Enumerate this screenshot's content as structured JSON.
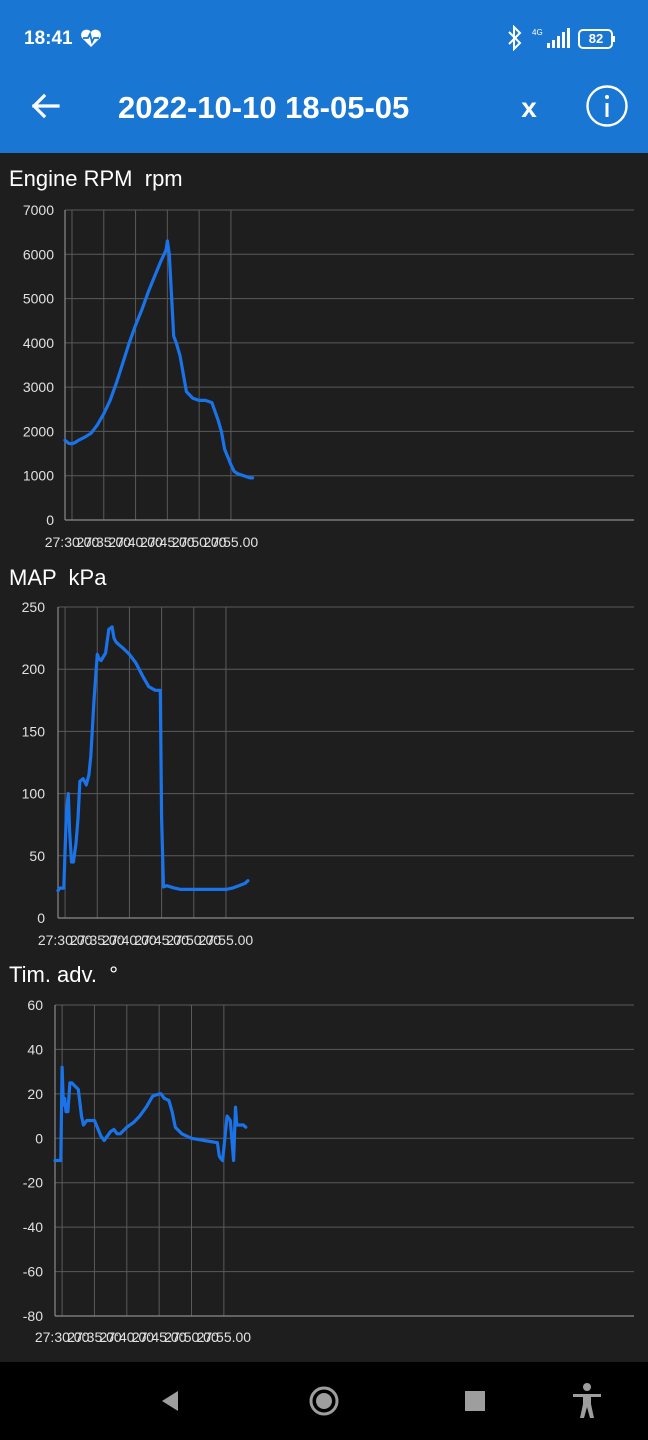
{
  "status_bar": {
    "time": "18:41",
    "network": "4G",
    "battery": "82",
    "icons": [
      "heart-monitor-icon",
      "bluetooth-icon",
      "signal-icon",
      "battery-icon"
    ]
  },
  "app_bar": {
    "title": "2022-10-10 18-05-05",
    "close_label": "x",
    "icons": [
      "back-arrow-icon",
      "info-icon"
    ],
    "color": "#1976d2"
  },
  "line_color": "#1a73e8",
  "chart_data": [
    {
      "type": "line",
      "title": "Engine RPM",
      "unit": "rpm",
      "ylim": [
        0,
        7000
      ],
      "yticks": [
        0,
        1000,
        2000,
        3000,
        4000,
        5000,
        6000,
        7000
      ],
      "ytick_labels": [
        "0",
        "1000",
        "2000",
        "3000",
        "4000",
        "5000",
        "6000",
        "7000"
      ],
      "xlim": [
        1648.9,
        1738.4
      ],
      "xticks": [
        1650,
        1655,
        1660,
        1665,
        1670,
        1675
      ],
      "xtick_labels": [
        "27:30.00",
        "27:35.00",
        "27:40.00",
        "27:45.00",
        "27:50.00",
        "27:55.00"
      ],
      "grid": true,
      "x": [
        1648.9,
        1649.5,
        1650.0,
        1650.5,
        1651.0,
        1652.0,
        1653.0,
        1654.0,
        1655.0,
        1656.0,
        1657.0,
        1658.0,
        1659.0,
        1660.0,
        1661.0,
        1662.0,
        1663.0,
        1664.0,
        1664.8,
        1665.0,
        1665.3,
        1665.6,
        1666.0,
        1666.4,
        1667.0,
        1668.0,
        1669.0,
        1670.0,
        1671.0,
        1672.0,
        1673.0,
        1673.5,
        1674.0,
        1675.0,
        1675.5,
        1676.0,
        1677.0,
        1678.0,
        1678.4
      ],
      "y": [
        1800,
        1730,
        1720,
        1750,
        1800,
        1870,
        1960,
        2150,
        2400,
        2700,
        3100,
        3550,
        4000,
        4400,
        4750,
        5150,
        5500,
        5850,
        6100,
        6300,
        6000,
        5200,
        4150,
        4000,
        3700,
        2900,
        2750,
        2700,
        2700,
        2650,
        2250,
        2000,
        1600,
        1250,
        1100,
        1050,
        1000,
        950,
        950
      ]
    },
    {
      "type": "line",
      "title": "MAP",
      "unit": "kPa",
      "ylim": [
        0,
        250
      ],
      "yticks": [
        0,
        50,
        100,
        150,
        200,
        250
      ],
      "ytick_labels": [
        "0",
        "50",
        "100",
        "150",
        "200",
        "250"
      ],
      "xlim": [
        1648.9,
        1738.4
      ],
      "xticks": [
        1650,
        1655,
        1660,
        1665,
        1670,
        1675
      ],
      "xtick_labels": [
        "27:30.00",
        "27:35.00",
        "27:40.00",
        "27:45.00",
        "27:50.00",
        "27:55.00"
      ],
      "grid": true,
      "x": [
        1648.9,
        1649.2,
        1649.8,
        1650.0,
        1650.2,
        1650.5,
        1650.7,
        1651.0,
        1651.3,
        1651.7,
        1652.0,
        1652.3,
        1652.8,
        1653.3,
        1653.7,
        1654.0,
        1654.5,
        1655.0,
        1655.3,
        1655.6,
        1656.3,
        1656.8,
        1657.3,
        1657.6,
        1657.9,
        1658.3,
        1659.0,
        1660.0,
        1661.0,
        1662.0,
        1663.0,
        1664.0,
        1664.6,
        1664.8,
        1665.0,
        1665.3,
        1665.8,
        1667.0,
        1668.0,
        1670.0,
        1672.0,
        1674.0,
        1675.0,
        1676.0,
        1677.0,
        1678.0,
        1678.4
      ],
      "y": [
        22,
        24,
        24,
        55,
        85,
        100,
        70,
        45,
        45,
        60,
        80,
        110,
        112,
        107,
        115,
        130,
        175,
        212,
        208,
        207,
        213,
        232,
        234,
        225,
        222,
        220,
        217,
        212,
        205,
        195,
        186,
        183,
        183,
        183,
        80,
        25,
        26,
        24,
        23,
        23,
        23,
        23,
        23,
        24,
        26,
        28,
        30
      ]
    },
    {
      "type": "line",
      "title": "Tim. adv.",
      "unit": "°",
      "ylim": [
        -80,
        60
      ],
      "yticks": [
        -80,
        -60,
        -40,
        -20,
        0,
        20,
        40,
        60
      ],
      "ytick_labels": [
        "-80",
        "-60",
        "-40",
        "-20",
        "0",
        "20",
        "40",
        "60"
      ],
      "xlim": [
        1648.9,
        1738.4
      ],
      "xticks": [
        1650,
        1655,
        1660,
        1665,
        1670,
        1675
      ],
      "xtick_labels": [
        "27:30.00",
        "27:35.00",
        "27:40.00",
        "27:45.00",
        "27:50.00",
        "27:55.00"
      ],
      "grid": true,
      "x": [
        1648.9,
        1649.8,
        1650.0,
        1650.2,
        1650.4,
        1650.6,
        1650.9,
        1651.2,
        1651.5,
        1651.8,
        1652.5,
        1653.0,
        1653.3,
        1653.8,
        1655.0,
        1656.0,
        1656.5,
        1657.0,
        1657.5,
        1658.0,
        1658.5,
        1659.0,
        1660.0,
        1661.0,
        1662.0,
        1663.0,
        1664.0,
        1665.0,
        1665.1,
        1665.3,
        1665.8,
        1666.5,
        1667.0,
        1667.5,
        1668.5,
        1670.0,
        1672.0,
        1674.0,
        1674.3,
        1674.5,
        1674.8,
        1675.5,
        1676.0,
        1676.5,
        1676.8,
        1677.0,
        1677.3,
        1678.0,
        1678.4
      ],
      "y": [
        -10,
        -10,
        32,
        15,
        18,
        12,
        12,
        25,
        25,
        24,
        22,
        10,
        6,
        8,
        8,
        1,
        -1,
        1,
        3,
        4,
        2,
        2,
        5,
        7,
        10,
        14,
        19,
        20,
        20,
        20,
        18,
        17,
        12,
        5,
        2,
        0,
        -1,
        -2,
        -8,
        -9,
        -10,
        10,
        8,
        -10,
        14,
        6,
        6,
        6,
        5
      ]
    }
  ],
  "nav_bar": {
    "buttons": [
      "back-triangle-icon",
      "home-circle-icon",
      "recents-square-icon",
      "accessibility-icon"
    ]
  }
}
